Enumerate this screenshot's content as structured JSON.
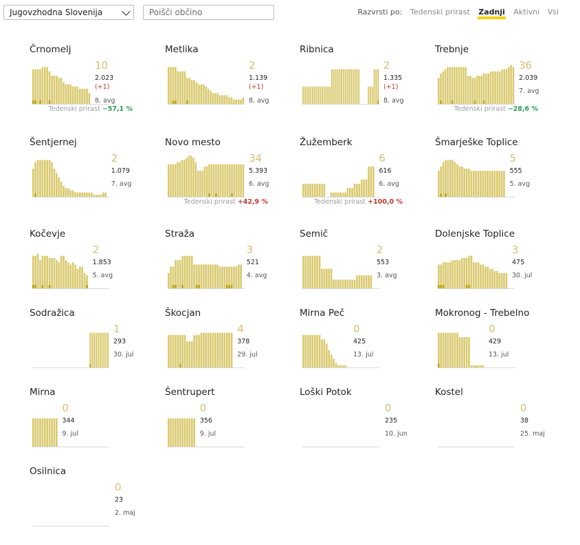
{
  "toolbar": {
    "region": "Jugovzhodna Slovenija",
    "search_placeholder": "Poišči občino",
    "sort_label": "Razvrsti po:",
    "sort_options": [
      "Tedenski prirast",
      "Zadnji",
      "Aktivni",
      "Vsi"
    ],
    "sort_active": "Zadnji"
  },
  "colors": {
    "bar": "#d9c96d",
    "bar_dark": "#b8a10e",
    "growth_down": "#2a9a55",
    "growth_up": "#c0392b",
    "accent": "#f6d000"
  },
  "growth_label": "Tedenski prirast",
  "municipalities": [
    {
      "name": "Črnomelj",
      "active": "10",
      "population": "2.023",
      "diff": "(+1)",
      "avg": "8. avg",
      "growth": "−57,1 %",
      "growth_dir": "down",
      "bars": [
        16,
        16,
        16,
        16,
        17,
        17,
        17,
        15,
        13,
        13,
        13,
        12,
        12,
        10,
        9,
        9,
        9,
        8,
        8,
        8,
        7,
        7,
        7,
        7,
        5
      ],
      "dark": [
        1,
        1,
        0,
        1,
        0,
        0,
        0,
        1,
        0,
        0,
        0,
        0,
        0,
        0,
        0,
        0,
        0,
        0,
        0,
        0,
        0,
        0,
        0,
        0,
        0
      ]
    },
    {
      "name": "Metlika",
      "active": "2",
      "population": "1.139",
      "diff": "(+1)",
      "avg": "8. avg",
      "bars": [
        17,
        17,
        17,
        17,
        15,
        15,
        15,
        15,
        12,
        12,
        11,
        11,
        10,
        9,
        9,
        9,
        8,
        7,
        6,
        5,
        5,
        5,
        4,
        4,
        4,
        4,
        3,
        3,
        2,
        2,
        2,
        2,
        3
      ],
      "dark": [
        0,
        0,
        1,
        1,
        0,
        0,
        0,
        0,
        1,
        0,
        0,
        0,
        0,
        0,
        0,
        0,
        0,
        0,
        0,
        0,
        0,
        0,
        0,
        0,
        0,
        0,
        0,
        0,
        0,
        0,
        0,
        0,
        0
      ]
    },
    {
      "name": "Ribnica",
      "active": "2",
      "population": "1.335",
      "diff": "(+1)",
      "avg": "8. avg",
      "bars": [
        8,
        8,
        8,
        8,
        8,
        8,
        8,
        8,
        8,
        8,
        8,
        8,
        8,
        8,
        8,
        16,
        16,
        16,
        16,
        16,
        16,
        16,
        16,
        16,
        16,
        16,
        16,
        16,
        16,
        16,
        0,
        0,
        0,
        0,
        8,
        8,
        8,
        16,
        16,
        16
      ],
      "dark": [
        0,
        0,
        0,
        0,
        0,
        0,
        0,
        0,
        0,
        0,
        0,
        0,
        0,
        0,
        0,
        0,
        0,
        0,
        0,
        0,
        0,
        0,
        0,
        0,
        0,
        0,
        0,
        0,
        0,
        0,
        0,
        0,
        0,
        0,
        0,
        0,
        0,
        0,
        0,
        1
      ]
    },
    {
      "name": "Trebnje",
      "active": "36",
      "population": "2.039",
      "avg": "7. avg",
      "growth": "−28,6 %",
      "growth_dir": "down",
      "bars": [
        12,
        14,
        15,
        16,
        17,
        17,
        17,
        17,
        17,
        17,
        17,
        17,
        17,
        13,
        13,
        12,
        12,
        13,
        13,
        13,
        14,
        14,
        14,
        15,
        15,
        15,
        15,
        15,
        16,
        16,
        16,
        17,
        18,
        17
      ],
      "dark": [
        0,
        1,
        0,
        0,
        0,
        0,
        1,
        0,
        0,
        0,
        0,
        0,
        0,
        0,
        0,
        0,
        1,
        0,
        0,
        0,
        1,
        0,
        0,
        0,
        0,
        0,
        0,
        0,
        0,
        0,
        0,
        0,
        0,
        0
      ]
    },
    {
      "name": "Šentjernej",
      "active": "2",
      "population": "1.079",
      "avg": "7. avg",
      "bars": [
        13,
        16,
        17,
        17,
        17,
        17,
        17,
        17,
        16,
        13,
        11,
        9,
        7,
        5,
        4,
        4,
        3,
        3,
        2,
        2,
        2,
        2,
        2,
        2,
        2,
        2,
        1,
        1,
        1,
        1,
        2,
        2
      ],
      "dark": [
        0,
        1,
        0,
        0,
        0,
        0,
        0,
        0,
        0,
        0,
        0,
        0,
        0,
        0,
        0,
        0,
        0,
        0,
        0,
        0,
        0,
        0,
        0,
        0,
        0,
        0,
        0,
        0,
        0,
        0,
        0,
        0
      ]
    },
    {
      "name": "Novo mesto",
      "active": "34",
      "population": "5.393",
      "avg": "6. avg",
      "growth": "+42,9 %",
      "growth_dir": "up",
      "bars": [
        15,
        15,
        15,
        15,
        16,
        16,
        17,
        17,
        18,
        19,
        19,
        18,
        16,
        12,
        12,
        12,
        14,
        14,
        15,
        15,
        15,
        15,
        15,
        15,
        15,
        15,
        15,
        15,
        15,
        15,
        15,
        15,
        15,
        15
      ],
      "dark": [
        0,
        0,
        0,
        0,
        0,
        0,
        0,
        0,
        0,
        0,
        0,
        0,
        0,
        0,
        0,
        0,
        0,
        0,
        1,
        0,
        0,
        1,
        0,
        0,
        0,
        0,
        0,
        0,
        1,
        0,
        0,
        0,
        0,
        0
      ]
    },
    {
      "name": "Žužemberk",
      "active": "6",
      "population": "616",
      "avg": "6. avg",
      "growth": "+100,0 %",
      "growth_dir": "up",
      "bars": [
        6,
        6,
        6,
        6,
        6,
        6,
        6,
        6,
        6,
        6,
        0,
        0,
        2,
        2,
        2,
        2,
        2,
        2,
        2,
        4,
        4,
        4,
        6,
        6,
        6,
        8,
        8,
        8,
        14,
        14,
        14
      ],
      "dark": [
        0,
        0,
        0,
        0,
        0,
        0,
        0,
        0,
        0,
        0,
        0,
        0,
        0,
        0,
        0,
        0,
        0,
        0,
        0,
        0,
        0,
        0,
        0,
        0,
        0,
        0,
        0,
        0,
        0,
        0,
        0
      ]
    },
    {
      "name": "Šmarješke Toplice",
      "active": "5",
      "population": "555",
      "avg": "5. avg",
      "bars": [
        12,
        14,
        16,
        17,
        17,
        17,
        17,
        16,
        15,
        14,
        14,
        13,
        13,
        13,
        12,
        12,
        12,
        12,
        12,
        12,
        12,
        12,
        12,
        12,
        12,
        12,
        12,
        12,
        12
      ],
      "dark": [
        0,
        1,
        0,
        1,
        0,
        0,
        0,
        0,
        0,
        0,
        0,
        0,
        0,
        0,
        0,
        0,
        0,
        0,
        0,
        0,
        0,
        0,
        0,
        0,
        0,
        0,
        0,
        0,
        0
      ]
    },
    {
      "name": "Kočevje",
      "active": "2",
      "population": "1.853",
      "avg": "5. avg",
      "bars": [
        15,
        15,
        16,
        13,
        15,
        15,
        15,
        14,
        14,
        14,
        13,
        12,
        15,
        15,
        13,
        12,
        11,
        12,
        11,
        9,
        10,
        10,
        7,
        6
      ],
      "dark": [
        1,
        1,
        0,
        0,
        1,
        0,
        0,
        1,
        0,
        0,
        0,
        0,
        0,
        0,
        0,
        0,
        0,
        0,
        0,
        0,
        0,
        0,
        0,
        1
      ]
    },
    {
      "name": "Straža",
      "active": "3",
      "population": "521",
      "avg": "4. avg",
      "bars": [
        7,
        10,
        10,
        13,
        13,
        13,
        15,
        15,
        15,
        15,
        15,
        11,
        11,
        11,
        11,
        11,
        11,
        11,
        11,
        11,
        11,
        11,
        10,
        10,
        10,
        10,
        10,
        10,
        10,
        10,
        11,
        11
      ],
      "dark": [
        0,
        0,
        1,
        1,
        0,
        0,
        1,
        0,
        0,
        0,
        0,
        0,
        1,
        1,
        0,
        0,
        0,
        0,
        0,
        0,
        0,
        0,
        0,
        0,
        0,
        1,
        1,
        1,
        0,
        0,
        0,
        0
      ]
    },
    {
      "name": "Semič",
      "active": "2",
      "population": "553",
      "avg": "3. avg",
      "bars": [
        15,
        15,
        15,
        15,
        15,
        15,
        15,
        15,
        9,
        9,
        9,
        9,
        9,
        4,
        4,
        4,
        4,
        4,
        4,
        4,
        4,
        4,
        4,
        6,
        6,
        6,
        6,
        6,
        6,
        6
      ],
      "dark": [
        0,
        0,
        0,
        0,
        0,
        0,
        0,
        0,
        0,
        0,
        0,
        0,
        0,
        0,
        0,
        0,
        0,
        0,
        0,
        0,
        0,
        0,
        0,
        0,
        0,
        0,
        0,
        0,
        0,
        0
      ]
    },
    {
      "name": "Dolenjske Toplice",
      "active": "3",
      "population": "475",
      "avg": "30. jul",
      "bars": [
        11,
        11,
        12,
        12,
        12,
        12,
        13,
        13,
        13,
        13,
        14,
        14,
        14,
        15,
        15,
        12,
        12,
        12,
        11,
        11,
        10,
        10,
        9,
        9,
        8,
        8,
        7,
        7,
        7,
        7
      ],
      "dark": [
        1,
        1,
        1,
        0,
        0,
        0,
        0,
        0,
        0,
        0,
        0,
        0,
        1,
        1,
        0,
        0,
        0,
        0,
        0,
        0,
        0,
        0,
        0,
        0,
        0,
        0,
        0,
        0,
        0,
        0
      ]
    },
    {
      "name": "Sodražica",
      "active": "1",
      "population": "293",
      "avg": "30. jul",
      "bars": [
        0,
        0,
        0,
        0,
        0,
        0,
        0,
        0,
        0,
        0,
        0,
        0,
        0,
        0,
        0,
        0,
        0,
        0,
        0,
        0,
        0,
        0,
        0,
        0,
        0,
        0,
        0,
        0,
        0,
        16,
        16,
        16,
        16,
        16,
        16,
        16,
        16,
        16,
        16
      ],
      "dark": [
        0,
        0,
        0,
        0,
        0,
        0,
        0,
        0,
        0,
        0,
        0,
        0,
        0,
        0,
        0,
        0,
        0,
        0,
        0,
        0,
        0,
        0,
        0,
        0,
        0,
        0,
        0,
        0,
        0,
        1,
        0,
        0,
        0,
        0,
        0,
        0,
        0,
        0,
        0
      ]
    },
    {
      "name": "Škocjan",
      "active": "4",
      "population": "378",
      "avg": "29. jul",
      "bars": [
        15,
        15,
        15,
        15,
        15,
        15,
        15,
        15,
        12,
        12,
        12,
        15,
        15,
        15,
        16,
        16,
        16,
        16,
        16,
        16,
        16,
        16,
        16,
        16,
        16,
        16,
        16,
        16
      ],
      "dark": [
        0,
        0,
        0,
        0,
        0,
        1,
        0,
        0,
        0,
        0,
        0,
        0,
        0,
        0,
        0,
        0,
        0,
        0,
        0,
        0,
        0,
        0,
        0,
        0,
        0,
        0,
        0,
        0
      ]
    },
    {
      "name": "Mirna Peč",
      "active": "0",
      "population": "425",
      "avg": "13. jul",
      "bars": [
        15,
        15,
        15,
        15,
        15,
        15,
        15,
        15,
        13,
        13,
        11,
        8,
        6,
        4,
        2,
        1,
        1,
        1,
        1,
        0
      ],
      "dark": [
        0,
        0,
        0,
        0,
        0,
        0,
        0,
        0,
        0,
        0,
        0,
        0,
        0,
        0,
        0,
        0,
        0,
        0,
        0,
        0
      ]
    },
    {
      "name": "Mokronog - Trebelno",
      "active": "0",
      "population": "429",
      "avg": "13. jul",
      "bars": [
        16,
        16,
        16,
        16,
        16,
        16,
        16,
        16,
        16,
        14,
        14,
        14,
        14,
        14,
        1,
        1,
        1,
        1,
        1,
        1
      ],
      "dark": [
        1,
        0,
        0,
        0,
        0,
        0,
        0,
        0,
        0,
        0,
        0,
        0,
        0,
        0,
        0,
        0,
        0,
        0,
        0,
        0
      ]
    },
    {
      "name": "Mirna",
      "active": "0",
      "population": "344",
      "avg": "9. jul",
      "bars": [
        13,
        13,
        13,
        13,
        13,
        13,
        13,
        13,
        13,
        13,
        13
      ],
      "dark": [
        0,
        0,
        0,
        0,
        0,
        0,
        0,
        0,
        0,
        0,
        0
      ]
    },
    {
      "name": "Šentrupert",
      "active": "0",
      "population": "356",
      "avg": "9. jul",
      "bars": [
        13,
        13,
        13,
        13,
        13,
        13,
        13,
        13,
        13,
        13,
        13,
        13
      ],
      "dark": [
        0,
        0,
        0,
        0,
        0,
        0,
        0,
        0,
        0,
        0,
        0,
        0
      ]
    },
    {
      "name": "Loški Potok",
      "active": "0",
      "population": "235",
      "avg": "10. jun",
      "bars": [],
      "dark": []
    },
    {
      "name": "Kostel",
      "active": "0",
      "population": "38",
      "avg": "25. maj",
      "bars": [],
      "dark": []
    },
    {
      "name": "Osilnica",
      "active": "0",
      "population": "23",
      "avg": "2. maj",
      "bars": [],
      "dark": []
    }
  ]
}
